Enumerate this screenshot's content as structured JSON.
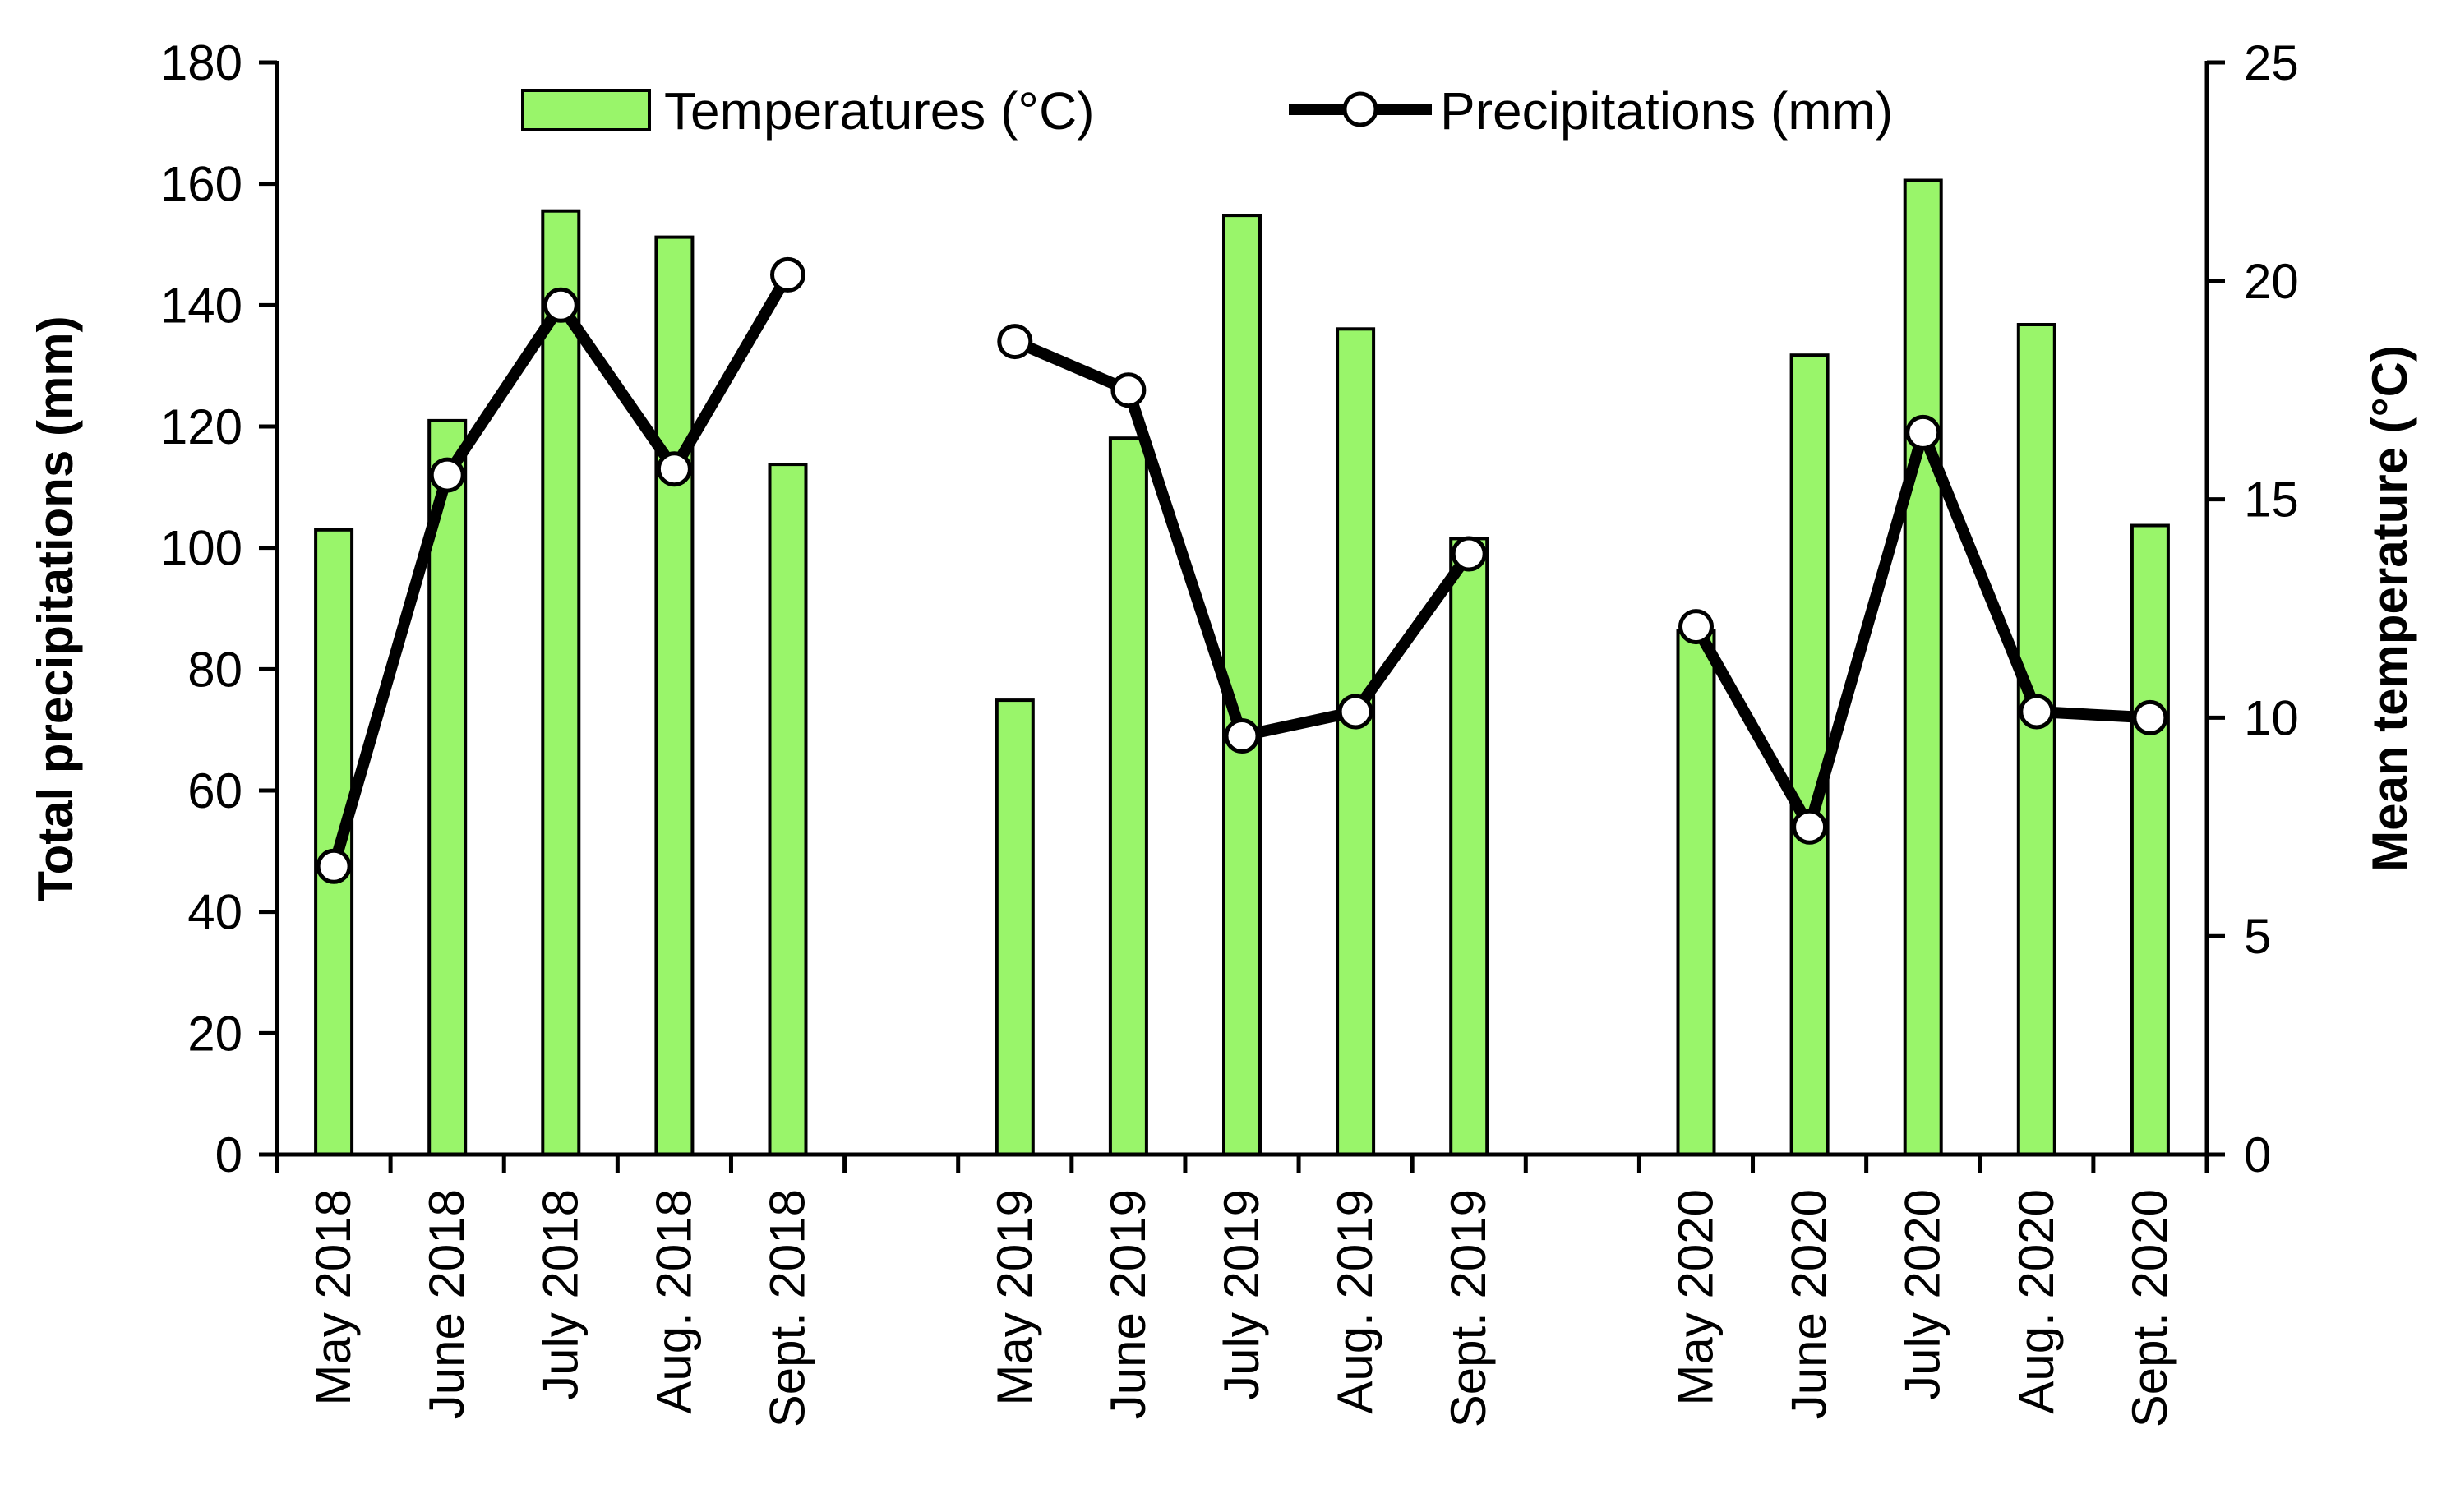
{
  "chart_data": {
    "type": "bar",
    "categories": [
      "May 2018",
      "June 2018",
      "July 2018",
      "Aug. 2018",
      "Sept. 2018",
      "",
      "May 2019",
      "June 2019",
      "July 2019",
      "Aug. 2019",
      "Sept. 2019",
      "",
      "May 2020",
      "June 2020",
      "July 2020",
      "Aug. 2020",
      "Sept. 2020"
    ],
    "series": [
      {
        "name": "Temperatures (°C)",
        "type": "bar",
        "axis": "right",
        "color": "#99f56a",
        "values": [
          14.3,
          16.8,
          21.6,
          21.0,
          15.8,
          null,
          10.4,
          16.4,
          21.5,
          18.9,
          14.1,
          null,
          12.0,
          18.3,
          22.3,
          19.0,
          14.4
        ]
      },
      {
        "name": "Precipitations (mm)",
        "type": "line",
        "axis": "left",
        "color": "#000000",
        "values": [
          47.5,
          112,
          140,
          113,
          145,
          null,
          134,
          126,
          69,
          73,
          99,
          null,
          87,
          54,
          119,
          73,
          72
        ]
      }
    ],
    "ylabel": "Total precipitations (mm)",
    "ylabel_right": "Mean temperature (°C)",
    "ylim": [
      0,
      180
    ],
    "yticks": [
      0,
      20,
      40,
      60,
      80,
      100,
      120,
      140,
      160,
      180
    ],
    "ylim_right": [
      0,
      25
    ],
    "yticks_right": [
      0,
      5,
      10,
      15,
      20,
      25
    ],
    "legend_position": "top-center",
    "grid": false
  }
}
